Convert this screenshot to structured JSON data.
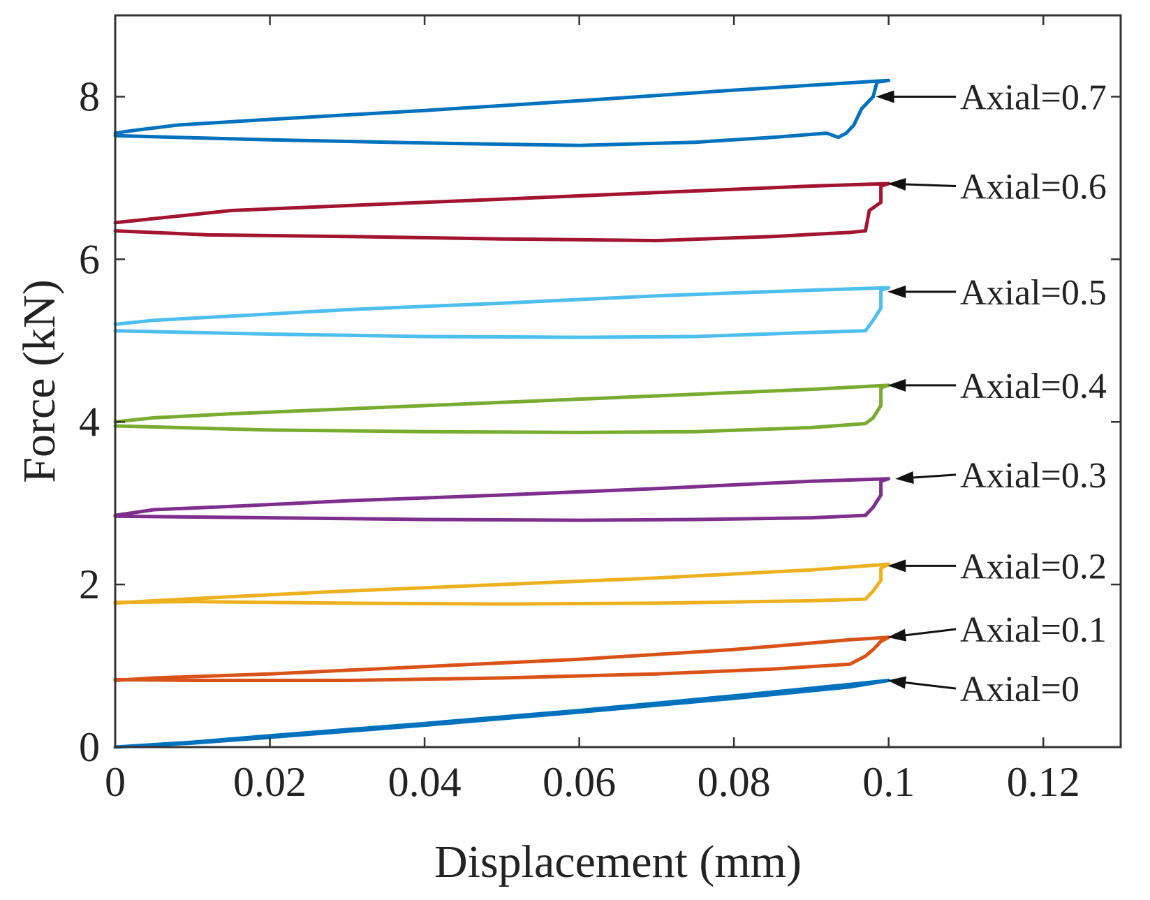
{
  "chart_data": {
    "type": "line",
    "title": "",
    "xlabel": "Displacement (mm)",
    "ylabel": "Force (kN)",
    "xlim": [
      0,
      0.13
    ],
    "ylim": [
      0,
      9.0
    ],
    "xticks": [
      0,
      0.02,
      0.04,
      0.06,
      0.08,
      0.1,
      0.12
    ],
    "xtick_labels": [
      "0",
      "0.02",
      "0.04",
      "0.06",
      "0.08",
      "0.1",
      "0.12"
    ],
    "yticks": [
      0,
      2,
      4,
      6,
      8
    ],
    "ytick_labels": [
      "0",
      "2",
      "4",
      "6",
      "8"
    ],
    "grid": false,
    "series": [
      {
        "name": "Axial=0.7",
        "color": "#0072BD",
        "label_value": 8.0,
        "upper": [
          [
            0,
            7.55
          ],
          [
            0.002,
            7.58
          ],
          [
            0.008,
            7.65
          ],
          [
            0.02,
            7.72
          ],
          [
            0.04,
            7.83
          ],
          [
            0.06,
            7.95
          ],
          [
            0.08,
            8.08
          ],
          [
            0.095,
            8.17
          ],
          [
            0.1,
            8.2
          ]
        ],
        "lower": [
          [
            0.1,
            8.2
          ],
          [
            0.0985,
            8.18
          ],
          [
            0.098,
            8.0
          ],
          [
            0.0965,
            7.85
          ],
          [
            0.0955,
            7.65
          ],
          [
            0.0945,
            7.55
          ],
          [
            0.0935,
            7.5
          ],
          [
            0.092,
            7.55
          ],
          [
            0.085,
            7.5
          ],
          [
            0.075,
            7.44
          ],
          [
            0.06,
            7.4
          ],
          [
            0.04,
            7.43
          ],
          [
            0.02,
            7.47
          ],
          [
            0.008,
            7.5
          ],
          [
            0,
            7.52
          ]
        ]
      },
      {
        "name": "Axial=0.6",
        "color": "#A2142F",
        "label_value": 6.9,
        "upper": [
          [
            0,
            6.45
          ],
          [
            0.007,
            6.52
          ],
          [
            0.015,
            6.6
          ],
          [
            0.03,
            6.66
          ],
          [
            0.05,
            6.74
          ],
          [
            0.07,
            6.82
          ],
          [
            0.09,
            6.9
          ],
          [
            0.1,
            6.93
          ]
        ],
        "lower": [
          [
            0.1,
            6.93
          ],
          [
            0.099,
            6.9
          ],
          [
            0.099,
            6.7
          ],
          [
            0.0975,
            6.6
          ],
          [
            0.097,
            6.35
          ],
          [
            0.095,
            6.33
          ],
          [
            0.085,
            6.28
          ],
          [
            0.07,
            6.23
          ],
          [
            0.05,
            6.25
          ],
          [
            0.03,
            6.28
          ],
          [
            0.012,
            6.3
          ],
          [
            0,
            6.35
          ]
        ]
      },
      {
        "name": "Axial=0.5",
        "color": "#4DBEEE",
        "label_value": 5.6,
        "upper": [
          [
            0,
            5.2
          ],
          [
            0.005,
            5.25
          ],
          [
            0.015,
            5.3
          ],
          [
            0.03,
            5.38
          ],
          [
            0.05,
            5.46
          ],
          [
            0.07,
            5.55
          ],
          [
            0.09,
            5.62
          ],
          [
            0.1,
            5.65
          ]
        ],
        "lower": [
          [
            0.1,
            5.65
          ],
          [
            0.099,
            5.62
          ],
          [
            0.099,
            5.4
          ],
          [
            0.098,
            5.25
          ],
          [
            0.097,
            5.12
          ],
          [
            0.09,
            5.1
          ],
          [
            0.075,
            5.05
          ],
          [
            0.06,
            5.04
          ],
          [
            0.04,
            5.05
          ],
          [
            0.02,
            5.08
          ],
          [
            0,
            5.12
          ]
        ]
      },
      {
        "name": "Axial=0.4",
        "color": "#77AC30",
        "label_value": 4.45,
        "upper": [
          [
            0,
            4.0
          ],
          [
            0.005,
            4.05
          ],
          [
            0.015,
            4.1
          ],
          [
            0.03,
            4.16
          ],
          [
            0.05,
            4.24
          ],
          [
            0.07,
            4.32
          ],
          [
            0.09,
            4.4
          ],
          [
            0.1,
            4.45
          ]
        ],
        "lower": [
          [
            0.1,
            4.45
          ],
          [
            0.099,
            4.42
          ],
          [
            0.099,
            4.2
          ],
          [
            0.098,
            4.05
          ],
          [
            0.097,
            3.98
          ],
          [
            0.09,
            3.93
          ],
          [
            0.075,
            3.88
          ],
          [
            0.06,
            3.87
          ],
          [
            0.04,
            3.88
          ],
          [
            0.02,
            3.9
          ],
          [
            0,
            3.95
          ]
        ]
      },
      {
        "name": "Axial=0.3",
        "color": "#7E2F8E",
        "label_value": 3.3,
        "upper": [
          [
            0,
            2.85
          ],
          [
            0.005,
            2.92
          ],
          [
            0.015,
            2.96
          ],
          [
            0.03,
            3.03
          ],
          [
            0.05,
            3.1
          ],
          [
            0.07,
            3.18
          ],
          [
            0.09,
            3.27
          ],
          [
            0.1,
            3.3
          ]
        ],
        "lower": [
          [
            0.1,
            3.3
          ],
          [
            0.099,
            3.27
          ],
          [
            0.099,
            3.1
          ],
          [
            0.098,
            2.95
          ],
          [
            0.097,
            2.85
          ],
          [
            0.09,
            2.82
          ],
          [
            0.075,
            2.8
          ],
          [
            0.06,
            2.79
          ],
          [
            0.04,
            2.8
          ],
          [
            0.02,
            2.82
          ],
          [
            0,
            2.84
          ]
        ]
      },
      {
        "name": "Axial=0.2",
        "color": "#EDB120",
        "label_value": 2.2,
        "upper": [
          [
            0,
            1.77
          ],
          [
            0.005,
            1.8
          ],
          [
            0.015,
            1.85
          ],
          [
            0.03,
            1.92
          ],
          [
            0.05,
            2.0
          ],
          [
            0.07,
            2.08
          ],
          [
            0.09,
            2.18
          ],
          [
            0.1,
            2.25
          ]
        ],
        "lower": [
          [
            0.1,
            2.25
          ],
          [
            0.099,
            2.2
          ],
          [
            0.099,
            2.05
          ],
          [
            0.098,
            1.92
          ],
          [
            0.097,
            1.82
          ],
          [
            0.09,
            1.8
          ],
          [
            0.07,
            1.77
          ],
          [
            0.05,
            1.76
          ],
          [
            0.03,
            1.77
          ],
          [
            0.01,
            1.79
          ],
          [
            0,
            1.78
          ]
        ]
      },
      {
        "name": "Axial=0.1",
        "color": "#D95319",
        "label_value": 1.35,
        "upper": [
          [
            0,
            0.82
          ],
          [
            0.005,
            0.85
          ],
          [
            0.02,
            0.9
          ],
          [
            0.04,
            0.99
          ],
          [
            0.06,
            1.08
          ],
          [
            0.08,
            1.2
          ],
          [
            0.095,
            1.32
          ],
          [
            0.1,
            1.35
          ]
        ],
        "lower": [
          [
            0.1,
            1.35
          ],
          [
            0.099,
            1.3
          ],
          [
            0.098,
            1.2
          ],
          [
            0.097,
            1.12
          ],
          [
            0.095,
            1.02
          ],
          [
            0.085,
            0.96
          ],
          [
            0.07,
            0.9
          ],
          [
            0.05,
            0.85
          ],
          [
            0.03,
            0.82
          ],
          [
            0.01,
            0.82
          ],
          [
            0,
            0.83
          ]
        ]
      },
      {
        "name": "Axial=0",
        "color": "#0072BD",
        "label_value": 0.82,
        "upper": [
          [
            0,
            0.0
          ],
          [
            0.01,
            0.06
          ],
          [
            0.02,
            0.14
          ],
          [
            0.04,
            0.29
          ],
          [
            0.06,
            0.45
          ],
          [
            0.08,
            0.63
          ],
          [
            0.095,
            0.77
          ],
          [
            0.1,
            0.82
          ]
        ],
        "lower": [
          [
            0.1,
            0.82
          ],
          [
            0.095,
            0.74
          ],
          [
            0.08,
            0.6
          ],
          [
            0.06,
            0.43
          ],
          [
            0.04,
            0.27
          ],
          [
            0.02,
            0.12
          ],
          [
            0.01,
            0.05
          ],
          [
            0,
            0.0
          ]
        ]
      }
    ],
    "annotations": [
      {
        "text": "Axial=0.7",
        "label_y": 8.0,
        "point": [
          0.098,
          8.0
        ]
      },
      {
        "text": "Axial=0.6",
        "label_y": 6.9,
        "point": [
          0.0995,
          6.93
        ]
      },
      {
        "text": "Axial=0.5",
        "label_y": 5.6,
        "point": [
          0.0995,
          5.6
        ]
      },
      {
        "text": "Axial=0.4",
        "label_y": 4.45,
        "point": [
          0.0995,
          4.45
        ]
      },
      {
        "text": "Axial=0.3",
        "label_y": 3.35,
        "point": [
          0.1005,
          3.3
        ]
      },
      {
        "text": "Axial=0.2",
        "label_y": 2.23,
        "point": [
          0.0995,
          2.23
        ]
      },
      {
        "text": "Axial=0.1",
        "label_y": 1.45,
        "point": [
          0.0995,
          1.35
        ]
      },
      {
        "text": "Axial=0",
        "label_y": 0.72,
        "point": [
          0.0995,
          0.82
        ]
      }
    ]
  }
}
